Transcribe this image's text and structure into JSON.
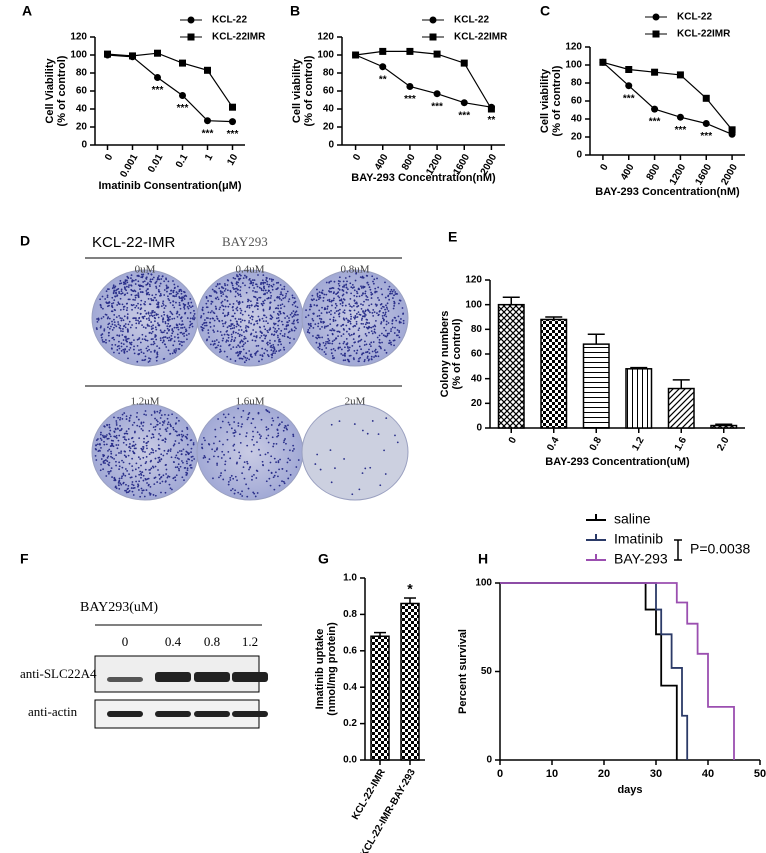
{
  "chart_data": [
    {
      "type": "line",
      "panel_label": "A",
      "x_label": "Imatinib Consentration(μM)",
      "y_label": [
        "Cell Viability",
        "(% of control)"
      ],
      "categories": [
        "0",
        "0.001",
        "0.01",
        "0.1",
        "1",
        "10"
      ],
      "ylim": [
        0,
        120
      ],
      "yticks": [
        0,
        20,
        40,
        60,
        80,
        100,
        120
      ],
      "legend": "upper right",
      "series": [
        {
          "name": "KCL-22",
          "color": "#000000",
          "marker": "circle",
          "values": [
            100,
            98,
            75,
            55,
            27,
            26
          ],
          "significance": [
            null,
            null,
            "***",
            "***",
            "***",
            "***"
          ]
        },
        {
          "name": "KCL-22IMR",
          "color": "#000000",
          "marker": "square",
          "values": [
            101,
            99,
            102,
            91,
            83,
            42
          ]
        }
      ]
    },
    {
      "type": "line",
      "panel_label": "B",
      "x_label": "BAY-293 Concentration(nM)",
      "y_label": [
        "Cell viability",
        "(% of control)"
      ],
      "categories": [
        "0",
        "400",
        "800",
        "1200",
        "1600",
        "2000"
      ],
      "ylim": [
        0,
        120
      ],
      "yticks": [
        0,
        20,
        40,
        60,
        80,
        100,
        120
      ],
      "legend": "upper right",
      "series": [
        {
          "name": "KCL-22",
          "color": "#000000",
          "marker": "circle",
          "values": [
            100,
            87,
            65,
            57,
            47,
            42
          ],
          "significance": [
            null,
            "**",
            "***",
            "***",
            "***",
            "**"
          ]
        },
        {
          "name": "KCL-22IMR",
          "color": "#000000",
          "marker": "square",
          "values": [
            100,
            104,
            104,
            101,
            91,
            40
          ]
        }
      ]
    },
    {
      "type": "line",
      "panel_label": "C",
      "x_label": "BAY-293 Concentration(nM)",
      "y_label": [
        "Cell viability",
        "(% of control)"
      ],
      "categories": [
        "0",
        "400",
        "800",
        "1200",
        "1600",
        "2000"
      ],
      "ylim": [
        0,
        120
      ],
      "yticks": [
        0,
        20,
        40,
        60,
        80,
        100,
        120
      ],
      "legend": "upper right",
      "series": [
        {
          "name": "KCL-22",
          "color": "#000000",
          "marker": "circle",
          "values": [
            103,
            77,
            51,
            42,
            35,
            23
          ],
          "significance": [
            null,
            "***",
            "***",
            "***",
            "***",
            null
          ]
        },
        {
          "name": "KCL-22IMR",
          "color": "#000000",
          "marker": "square",
          "values": [
            103,
            95,
            92,
            89,
            63,
            28
          ]
        }
      ]
    },
    {
      "type": "bar",
      "panel_label": "E",
      "x_label": "BAY-293 Concentration(uM)",
      "y_label": [
        "Colony numbers",
        "(% of control)"
      ],
      "categories": [
        "0",
        "0.4",
        "0.8",
        "1.2",
        "1.6",
        "2.0"
      ],
      "values": [
        100,
        88,
        68,
        48,
        32,
        2
      ],
      "errors": [
        6,
        2,
        8,
        1,
        7,
        1
      ],
      "hatches": [
        "crosshatch",
        "checker",
        "horizontal",
        "vertical",
        "diagonal",
        "crosshatch"
      ],
      "color": "#000000",
      "ylim": [
        0,
        120
      ],
      "yticks": [
        0,
        20,
        40,
        60,
        80,
        100,
        120
      ]
    },
    {
      "type": "bar",
      "panel_label": "G",
      "y_label": [
        "Imatinib uptake",
        "(nmol/mg protein)"
      ],
      "categories": [
        "KCL-22-IMR",
        "KCL-22-IMR-BAY-293"
      ],
      "values": [
        0.68,
        0.86
      ],
      "errors": [
        0.02,
        0.03
      ],
      "significance": [
        null,
        "*"
      ],
      "hatches": [
        "checker",
        "checker"
      ],
      "color": "#000000",
      "ylim": [
        0,
        1.0
      ],
      "yticks": [
        {
          "value": 0,
          "label": "0.0"
        },
        0.2,
        0.4,
        0.6,
        0.8,
        {
          "value": 1.0,
          "label": "1.0"
        }
      ]
    },
    {
      "type": "survival",
      "panel_label": "H",
      "x_label": "days",
      "y_label": [
        "Percent survival"
      ],
      "annotation": "P=0.0038",
      "xlim": [
        0,
        50
      ],
      "xticks": [
        0,
        10,
        20,
        30,
        40,
        50
      ],
      "ylim": [
        0,
        100
      ],
      "yticks": [
        0,
        50,
        100
      ],
      "series": [
        {
          "name": "saline",
          "color": "#000000",
          "x": [
            0,
            28,
            30,
            31,
            34
          ],
          "values": [
            100,
            85,
            71,
            42,
            0
          ]
        },
        {
          "name": "Imatinib",
          "color": "#2b3a67",
          "x": [
            0,
            30,
            31,
            33,
            35,
            36
          ],
          "values": [
            100,
            85,
            71,
            52,
            25,
            0
          ]
        },
        {
          "name": "BAY-293",
          "color": "#9b4fb0",
          "x": [
            0,
            34,
            36,
            38,
            40,
            45
          ],
          "values": [
            100,
            89,
            77,
            60,
            30,
            0
          ]
        }
      ]
    }
  ],
  "panel_d": {
    "panel_label": "D",
    "cell_line": "KCL-22-IMR",
    "drug": "BAY293",
    "doses": [
      "0uM",
      "0.4uM",
      "0.8uM",
      "1.2uM",
      "1.6uM",
      "2uM"
    ]
  },
  "panel_f": {
    "panel_label": "F",
    "drug": "BAY293(uM)",
    "doses": [
      "0",
      "0.4",
      "0.8",
      "1.2"
    ],
    "antibodies": [
      "anti-SLC22A4",
      "anti-actin"
    ]
  }
}
